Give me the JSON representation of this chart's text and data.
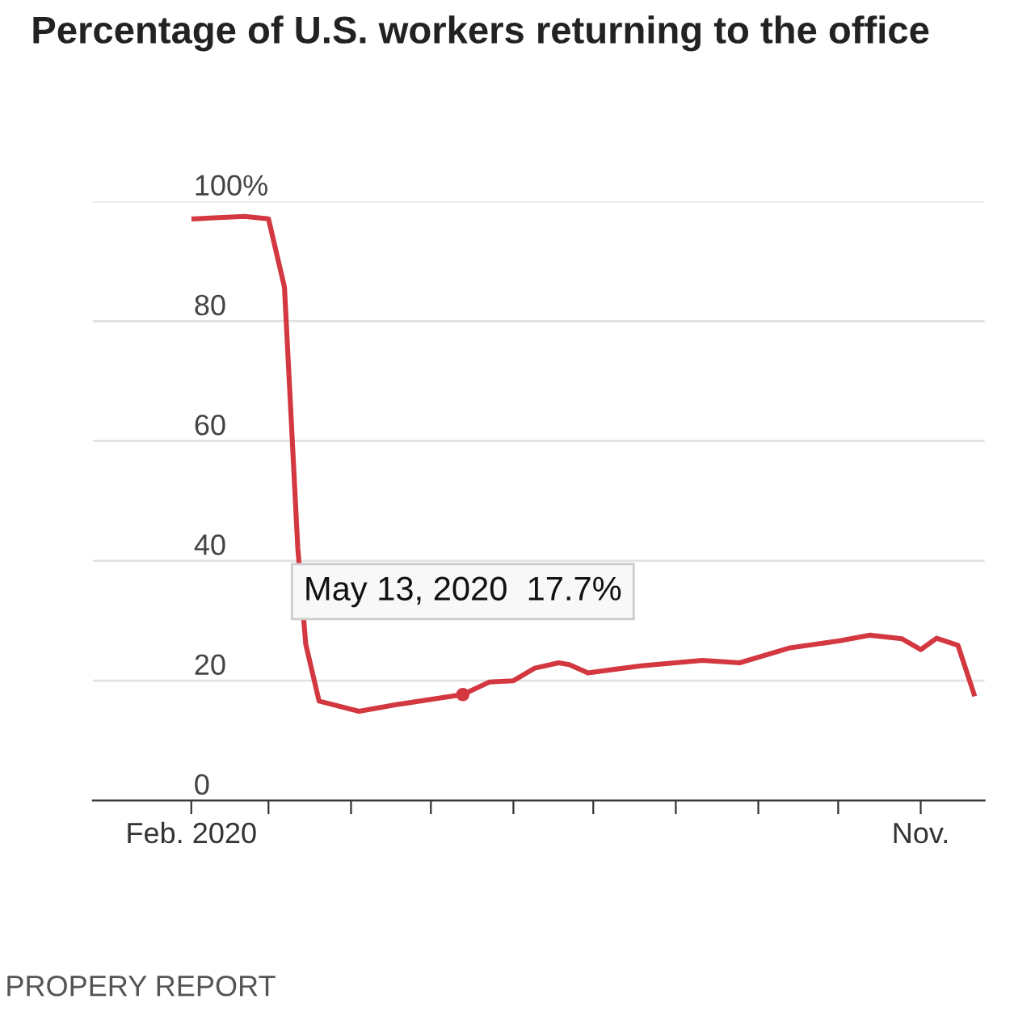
{
  "chart_data": {
    "type": "line",
    "title": "Percentage of U.S. workers returning to the office",
    "x": [
      "2020-02-02",
      "2020-02-21",
      "2020-03-01",
      "2020-03-07",
      "2020-03-12",
      "2020-03-15",
      "2020-03-20",
      "2020-04-04",
      "2020-04-18",
      "2020-05-13",
      "2020-05-23",
      "2020-06-01",
      "2020-06-09",
      "2020-06-18",
      "2020-06-22",
      "2020-06-29",
      "2020-07-19",
      "2020-08-11",
      "2020-08-25",
      "2020-09-13",
      "2020-10-02",
      "2020-10-13",
      "2020-10-25",
      "2020-11-01",
      "2020-11-07",
      "2020-11-15",
      "2020-11-21"
    ],
    "series": [
      {
        "color": "#d3373f",
        "values": [
          97.1,
          97.5,
          97.1,
          85.7,
          42.2,
          26.1,
          16.6,
          14.9,
          16.0,
          17.7,
          19.8,
          20.0,
          22.1,
          23.0,
          22.7,
          21.3,
          22.5,
          23.4,
          23.0,
          25.5,
          26.7,
          27.6,
          27.0,
          25.2,
          27.1,
          25.9,
          17.8
        ]
      }
    ],
    "xlim": [
      "2019-12-26",
      "2020-11-25"
    ],
    "xticks": [
      {
        "value": "2020-02-01",
        "label": "Feb. 2020"
      },
      {
        "value": "2020-03-01",
        "label": null
      },
      {
        "value": "2020-04-01",
        "label": null
      },
      {
        "value": "2020-05-01",
        "label": null
      },
      {
        "value": "2020-06-01",
        "label": null
      },
      {
        "value": "2020-07-01",
        "label": null
      },
      {
        "value": "2020-08-01",
        "label": null
      },
      {
        "value": "2020-09-01",
        "label": null
      },
      {
        "value": "2020-10-01",
        "label": null
      },
      {
        "value": "2020-11-01",
        "label": "Nov."
      }
    ],
    "ylim": [
      0,
      100
    ],
    "yticks": [
      0,
      20,
      40,
      60,
      {
        "value": 80,
        "label": "80"
      },
      {
        "value": 100,
        "label": "100%"
      }
    ],
    "grid": "y",
    "marker": "none",
    "line_style": "solid",
    "legend": false,
    "annotations": [
      {
        "text": "May 13, 2020  17.7%",
        "x": "2020-05-13",
        "y": 17.7
      },
      "PROPERY REPORT"
    ]
  }
}
